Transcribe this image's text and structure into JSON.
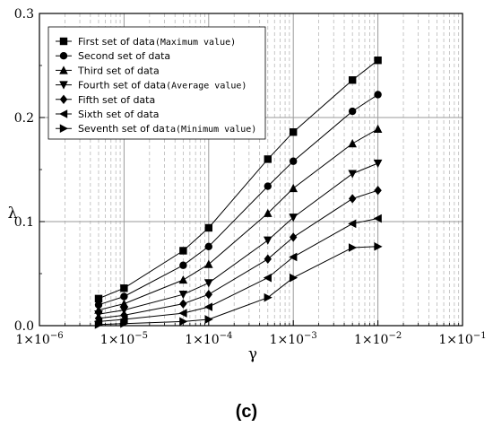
{
  "caption": "(c)",
  "chart_data": {
    "type": "line",
    "xscale": "log",
    "xlim": [
      1e-06,
      0.1
    ],
    "ylim": [
      0,
      0.3
    ],
    "xlabel": "γ",
    "ylabel": "λ",
    "x_ticks": [
      {
        "value": 1e-06,
        "base": "1×10",
        "exp": "−6"
      },
      {
        "value": 1e-05,
        "base": "1×10",
        "exp": "−5"
      },
      {
        "value": 0.0001,
        "base": "1×10",
        "exp": "−4"
      },
      {
        "value": 0.001,
        "base": "1×10",
        "exp": "−3"
      },
      {
        "value": 0.01,
        "base": "1×10",
        "exp": "−2"
      },
      {
        "value": 0.1,
        "base": "1×10",
        "exp": "−1"
      }
    ],
    "y_ticks": [
      {
        "value": 0.0,
        "label": "0.0"
      },
      {
        "value": 0.1,
        "label": "0.1"
      },
      {
        "value": 0.2,
        "label": "0.2"
      },
      {
        "value": 0.3,
        "label": "0.3"
      }
    ],
    "grid": true,
    "legend_position": "top-left",
    "x": [
      5e-06,
      1e-05,
      5e-05,
      0.0001,
      0.0005,
      0.001,
      0.005,
      0.01
    ],
    "series": [
      {
        "name": "First set of data",
        "name_suffix": "(Maximum value)",
        "marker": "square",
        "values": [
          0.026,
          0.036,
          0.072,
          0.094,
          0.16,
          0.186,
          0.236,
          0.255
        ]
      },
      {
        "name": "Second set of data",
        "name_suffix": "",
        "marker": "circle",
        "values": [
          0.02,
          0.028,
          0.058,
          0.076,
          0.134,
          0.158,
          0.206,
          0.222
        ]
      },
      {
        "name": "Third set of data",
        "name_suffix": "",
        "marker": "triangle-up",
        "values": [
          0.015,
          0.021,
          0.044,
          0.059,
          0.108,
          0.132,
          0.175,
          0.189
        ]
      },
      {
        "name": "Fourth set of data",
        "name_suffix": "(Average value)",
        "marker": "triangle-down",
        "values": [
          0.011,
          0.015,
          0.03,
          0.041,
          0.082,
          0.104,
          0.146,
          0.156
        ]
      },
      {
        "name": "Fifth set of data",
        "name_suffix": "",
        "marker": "diamond",
        "values": [
          0.007,
          0.01,
          0.021,
          0.03,
          0.064,
          0.085,
          0.122,
          0.13
        ]
      },
      {
        "name": "Sixth set of data",
        "name_suffix": "",
        "marker": "triangle-left",
        "values": [
          0.004,
          0.006,
          0.012,
          0.018,
          0.046,
          0.066,
          0.098,
          0.103
        ]
      },
      {
        "name": "Seventh set of da",
        "name_suffix": "ta(Minimum value)",
        "marker": "triangle-right",
        "values": [
          0.001,
          0.002,
          0.004,
          0.006,
          0.027,
          0.046,
          0.075,
          0.076
        ]
      }
    ]
  }
}
